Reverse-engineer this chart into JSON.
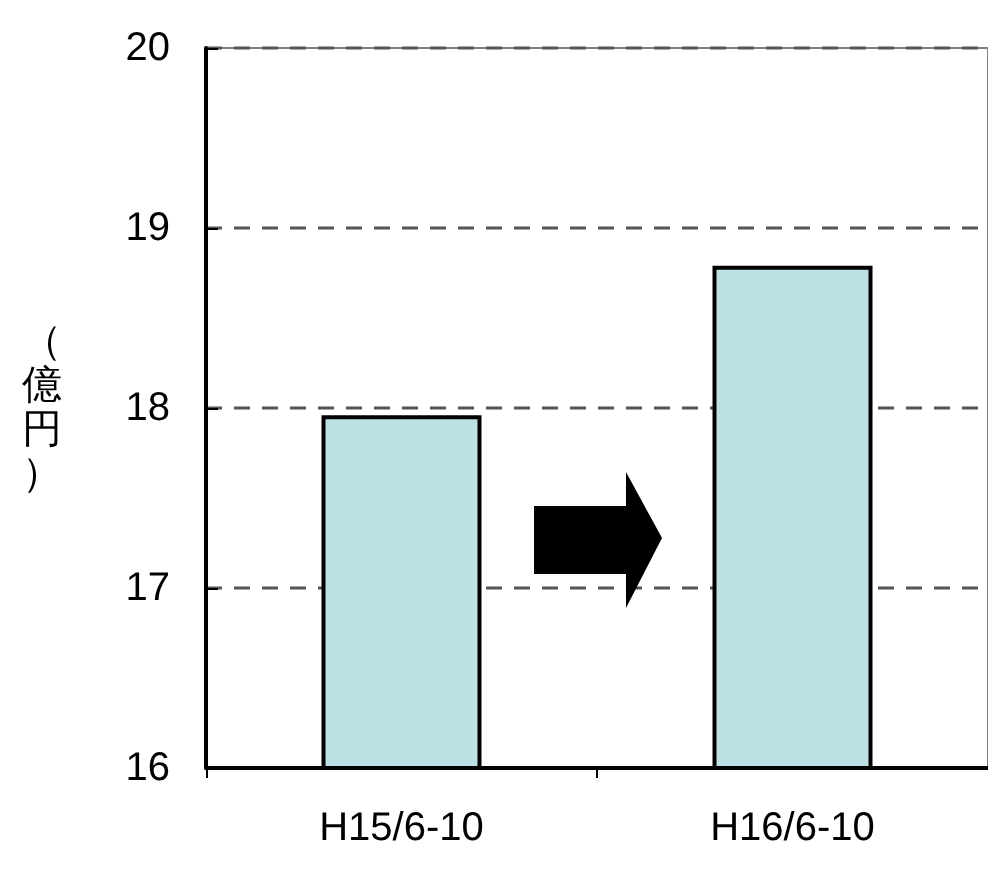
{
  "chart_data": {
    "type": "bar",
    "ylabel": "（億円）",
    "categories": [
      "H15/6-10",
      "H16/6-10"
    ],
    "values": [
      17.96,
      18.79
    ],
    "color": "#bce0e3",
    "ylim": [
      16,
      20
    ],
    "yticks": [
      16,
      17,
      18,
      19,
      20
    ],
    "grid": "y"
  }
}
